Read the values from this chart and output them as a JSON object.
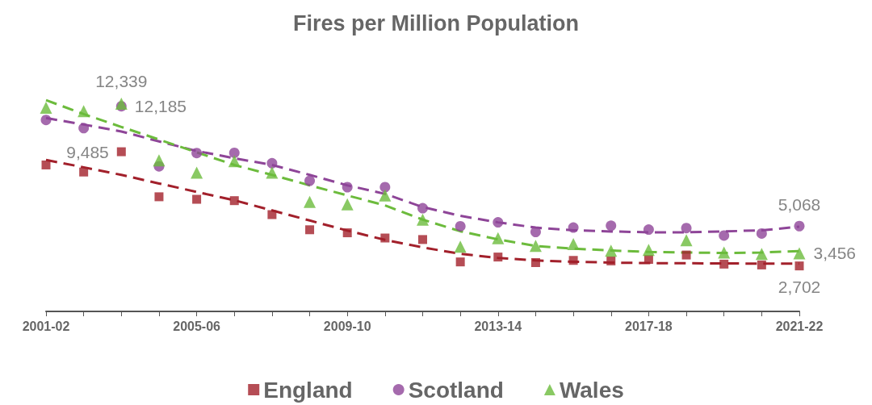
{
  "chart_data": {
    "type": "scatter",
    "title": "Fires per Million Population",
    "categories": [
      "2001-02",
      null,
      null,
      null,
      "2005-06",
      null,
      null,
      null,
      "2009-10",
      null,
      null,
      null,
      "2013-14",
      null,
      null,
      null,
      "2017-18",
      null,
      null,
      null,
      "2021-22"
    ],
    "legend": "bottom",
    "grid": false,
    "series": [
      {
        "name": "England",
        "marker": "square",
        "color": "#a2202b",
        "values": [
          8700,
          8280,
          9485,
          6810,
          6660,
          6580,
          5750,
          4850,
          4670,
          4360,
          4270,
          2940,
          3230,
          2900,
          3030,
          3000,
          3090,
          3350,
          2810,
          2760,
          2702
        ],
        "value_labels": [
          null,
          null,
          "9,485",
          null,
          null,
          null,
          null,
          null,
          null,
          null,
          null,
          null,
          null,
          null,
          null,
          null,
          null,
          null,
          null,
          null,
          "2,702"
        ]
      },
      {
        "name": "Scotland",
        "marker": "circle",
        "color": "#8e4598",
        "values": [
          11370,
          10890,
          12185,
          8620,
          9410,
          9420,
          8800,
          7760,
          7380,
          7380,
          6130,
          5060,
          5290,
          4720,
          4980,
          5090,
          4860,
          4950,
          4510,
          4630,
          5068
        ],
        "value_labels": [
          null,
          null,
          "12,185",
          null,
          null,
          null,
          null,
          null,
          null,
          null,
          null,
          null,
          null,
          null,
          null,
          null,
          null,
          null,
          null,
          null,
          "5,068"
        ]
      },
      {
        "name": "Wales",
        "marker": "triangle",
        "color": "#6cbb3c",
        "values": [
          12100,
          11900,
          12339,
          8970,
          8240,
          8920,
          8240,
          6510,
          6360,
          6890,
          5450,
          3840,
          4350,
          3890,
          4000,
          3610,
          3650,
          4230,
          3500,
          3420,
          3456
        ],
        "value_labels": [
          null,
          null,
          "12,339",
          null,
          null,
          null,
          null,
          null,
          null,
          null,
          null,
          null,
          null,
          null,
          null,
          null,
          null,
          null,
          null,
          null,
          "3,456"
        ]
      },
      {
        "type": "line",
        "marker": "none",
        "line_style": "dashed",
        "color": "#a2202b",
        "values": [
          9000,
          8560,
          8110,
          7600,
          7100,
          6600,
          6000,
          5400,
          4800,
          4250,
          3800,
          3420,
          3180,
          3030,
          2950,
          2900,
          2870,
          2860,
          2850,
          2840,
          2840
        ]
      },
      {
        "type": "line",
        "marker": "none",
        "line_style": "dashed",
        "color": "#8e4598",
        "values": [
          11490,
          11100,
          10690,
          10100,
          9530,
          9100,
          8700,
          8110,
          7490,
          6980,
          6200,
          5680,
          5290,
          4980,
          4820,
          4750,
          4700,
          4700,
          4750,
          4820,
          5030
        ]
      },
      {
        "type": "line",
        "marker": "none",
        "line_style": "dashed",
        "color": "#6cbb3c",
        "values": [
          12550,
          11720,
          10960,
          10210,
          9450,
          8700,
          8110,
          7490,
          6890,
          6300,
          5450,
          4760,
          4280,
          3890,
          3730,
          3620,
          3530,
          3500,
          3470,
          3500,
          3580
        ]
      }
    ]
  }
}
